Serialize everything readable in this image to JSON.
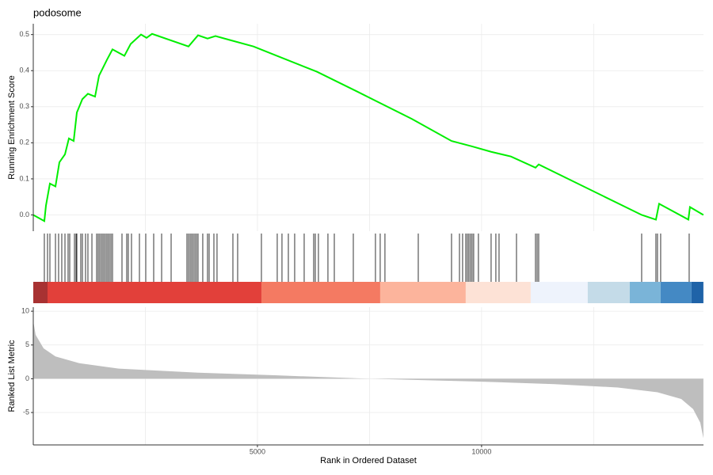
{
  "chart_data": [
    {
      "type": "line",
      "title": "podosome",
      "ylabel": "Running Enrichment Score",
      "color": "#00ee00",
      "x": [
        0,
        247,
        283,
        371,
        495,
        583,
        707,
        795,
        901,
        972,
        1095,
        1219,
        1378,
        1467,
        1643,
        1767,
        2032,
        2173,
        2403,
        2527,
        2650,
        3463,
        3675,
        3887,
        4064,
        4382,
        4912,
        5354,
        6326,
        7209,
        8446,
        9330,
        9789,
        10213,
        10655,
        11203,
        11274,
        13571,
        13889,
        13960,
        14613,
        14648,
        14948
      ],
      "values": [
        0,
        -0.017,
        0.026,
        0.087,
        0.079,
        0.146,
        0.168,
        0.212,
        0.205,
        0.284,
        0.321,
        0.336,
        0.328,
        0.386,
        0.43,
        0.459,
        0.441,
        0.474,
        0.5,
        0.491,
        0.502,
        0.467,
        0.498,
        0.489,
        0.496,
        0.485,
        0.467,
        0.445,
        0.397,
        0.343,
        0.266,
        0.205,
        0.19,
        0.175,
        0.162,
        0.131,
        0.14,
        0,
        -0.013,
        0.031,
        -0.013,
        0.022,
        0
      ],
      "xlim": [
        0,
        14950
      ],
      "ylim": [
        -0.045,
        0.53
      ],
      "yticks": [
        {
          "value": 0,
          "label": "0.0"
        },
        0.1,
        0.2,
        0.3,
        0.4,
        0.5
      ],
      "xgrid": [
        2500,
        5000,
        7500,
        10000,
        12500
      ],
      "grid": true
    },
    {
      "type": "rug",
      "color": "#000000",
      "xlim": [
        0,
        14950
      ],
      "values": [
        247,
        318,
        371,
        495,
        565,
        636,
        707,
        777,
        813,
        919,
        954,
        972,
        1060,
        1096,
        1166,
        1219,
        1308,
        1414,
        1449,
        1484,
        1520,
        1555,
        1590,
        1626,
        1661,
        1696,
        1732,
        1767,
        1979,
        2085,
        2120,
        2191,
        2368,
        2509,
        2686,
        2863,
        3075,
        3428,
        3463,
        3499,
        3534,
        3569,
        3605,
        3640,
        3675,
        3781,
        3887,
        3923,
        4029,
        4099,
        4453,
        4559,
        5089,
        5442,
        5548,
        5690,
        5831,
        6043,
        6255,
        6291,
        6361,
        6573,
        6715,
        7139,
        7633,
        7739,
        7845,
        8588,
        9330,
        9507,
        9577,
        9648,
        9683,
        9718,
        9754,
        9789,
        9824,
        9930,
        10213,
        10319,
        10390,
        10779,
        11203,
        11239,
        11274,
        13571,
        13889,
        13924,
        13995,
        14631
      ],
      "bands": [
        0,
        318,
        5089,
        7739,
        9647,
        11096,
        12368,
        13305,
        13994,
        14683,
        14948
      ],
      "band_colors": [
        "#a83232",
        "#e2403a",
        "#f47a62",
        "#fcb49c",
        "#fde2d6",
        "#eef3fc",
        "#c4dbe8",
        "#7ab4d8",
        "#4489c4",
        "#1f63a8"
      ]
    },
    {
      "type": "area",
      "ylabel": "Ranked List Metric",
      "xlabel": "Rank in Ordered Dataset",
      "color": "#bebebe",
      "x": [
        0,
        53,
        230,
        495,
        1025,
        1908,
        3675,
        5442,
        7298,
        8093,
        9860,
        11627,
        13041,
        13924,
        14454,
        14719,
        14878,
        14948
      ],
      "values": [
        8.5,
        6.5,
        4.5,
        3.3,
        2.3,
        1.5,
        0.9,
        0.5,
        0.05,
        -0.1,
        -0.4,
        -0.8,
        -1.3,
        -2,
        -3,
        -4.5,
        -6.5,
        -8.8
      ],
      "xlim": [
        0,
        14950
      ],
      "ylim": [
        -9.8,
        10.6
      ],
      "yticks": [
        -5,
        0,
        5,
        10
      ],
      "xticks": [
        5000,
        10000
      ],
      "xgrid": [
        2500,
        5000,
        7500,
        10000,
        12500
      ],
      "grid": true
    }
  ]
}
